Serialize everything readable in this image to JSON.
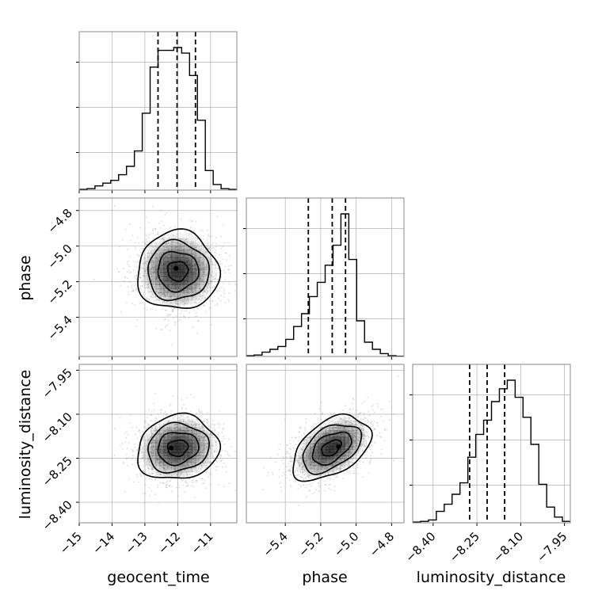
{
  "chart_data": {
    "type": "corner",
    "grid": true,
    "parameters": [
      "geocent_time",
      "phase",
      "luminosity_distance"
    ],
    "axis_labels": {
      "geocent_time": "geocent_time",
      "phase": "phase",
      "luminosity_distance": "luminosity_distance"
    },
    "ranges": {
      "geocent_time": [
        -15.0,
        -10.2
      ],
      "phase": [
        -5.62,
        -4.73
      ],
      "luminosity_distance": [
        -8.47,
        -7.93
      ]
    },
    "ticks": {
      "geocent_time": [
        -15,
        -14,
        -13,
        -12,
        -11
      ],
      "phase": [
        -5.4,
        -5.2,
        -5.0,
        -4.8
      ],
      "luminosity_distance": [
        -8.4,
        -8.25,
        -8.1,
        -7.95
      ]
    },
    "tick_labels": {
      "geocent_time": [
        "−15",
        "−14",
        "−13",
        "−12",
        "−11"
      ],
      "phase": [
        "−5.4",
        "−5.2",
        "−5.0",
        "−4.8"
      ],
      "luminosity_distance": [
        "−8.40",
        "−8.25",
        "−8.10",
        "−7.95"
      ]
    },
    "histograms": {
      "geocent_time": {
        "bin_edges": [
          -15.0,
          -14.76,
          -14.52,
          -14.28,
          -14.04,
          -13.8,
          -13.56,
          -13.32,
          -13.08,
          -12.84,
          -12.6,
          -12.36,
          -12.12,
          -11.88,
          -11.64,
          -11.4,
          -11.16,
          -10.92,
          -10.68,
          -10.44,
          -10.2
        ],
        "counts": [
          0.005,
          0.01,
          0.03,
          0.05,
          0.07,
          0.11,
          0.17,
          0.28,
          0.55,
          0.88,
          1.0,
          1.0,
          1.02,
          0.98,
          0.82,
          0.5,
          0.14,
          0.04,
          0.01,
          0.005
        ],
        "quantiles": [
          -12.6,
          -12.02,
          -11.46
        ]
      },
      "phase": {
        "bin_edges": [
          -5.62,
          -5.5755,
          -5.531,
          -5.4865,
          -5.442,
          -5.3975,
          -5.353,
          -5.3085,
          -5.264,
          -5.2195,
          -5.175,
          -5.1305,
          -5.086,
          -5.0415,
          -4.997,
          -4.9525,
          -4.908,
          -4.8635,
          -4.819,
          -4.7745,
          -4.73
        ],
        "counts": [
          0.005,
          0.01,
          0.03,
          0.05,
          0.07,
          0.12,
          0.21,
          0.3,
          0.42,
          0.52,
          0.64,
          0.78,
          1.0,
          0.68,
          0.25,
          0.1,
          0.05,
          0.02,
          0.005,
          0.002
        ],
        "quantiles": [
          -5.27,
          -5.135,
          -5.06
        ]
      },
      "luminosity_distance": {
        "bin_edges": [
          -8.47,
          -8.443,
          -8.416,
          -8.389,
          -8.362,
          -8.335,
          -8.308,
          -8.281,
          -8.254,
          -8.227,
          -8.2,
          -8.173,
          -8.146,
          -8.119,
          -8.092,
          -8.065,
          -8.038,
          -8.011,
          -7.984,
          -7.957,
          -7.93
        ],
        "counts": [
          0.005,
          0.01,
          0.02,
          0.08,
          0.13,
          0.2,
          0.28,
          0.46,
          0.62,
          0.72,
          0.85,
          0.94,
          1.0,
          0.88,
          0.74,
          0.55,
          0.27,
          0.11,
          0.04,
          0.01
        ],
        "quantiles": [
          -8.275,
          -8.215,
          -8.155
        ]
      }
    },
    "pairs": [
      {
        "x": "geocent_time",
        "y": "phase",
        "mean": [
          -12.0,
          -5.14
        ],
        "std": [
          0.62,
          0.11
        ],
        "corr": 0.0,
        "peak": [
          -12.05,
          -5.125
        ]
      },
      {
        "x": "geocent_time",
        "y": "luminosity_distance",
        "mean": [
          -12.0,
          -8.215
        ],
        "std": [
          0.62,
          0.055
        ],
        "corr": 0.1,
        "peak": [
          -12.2,
          -8.215
        ]
      },
      {
        "x": "phase",
        "y": "luminosity_distance",
        "mean": [
          -5.14,
          -8.215
        ],
        "std": [
          0.11,
          0.055
        ],
        "corr": 0.45,
        "peak": [
          -5.1,
          -8.21
        ]
      }
    ],
    "contour_levels_sigma": [
      0.5,
      1.0,
      1.5,
      2.0
    ],
    "colors": {
      "line": "#000000",
      "grid": "#b0b0b0",
      "points": "#9a9a9a",
      "frame": "#888888",
      "density": "#000000"
    }
  }
}
